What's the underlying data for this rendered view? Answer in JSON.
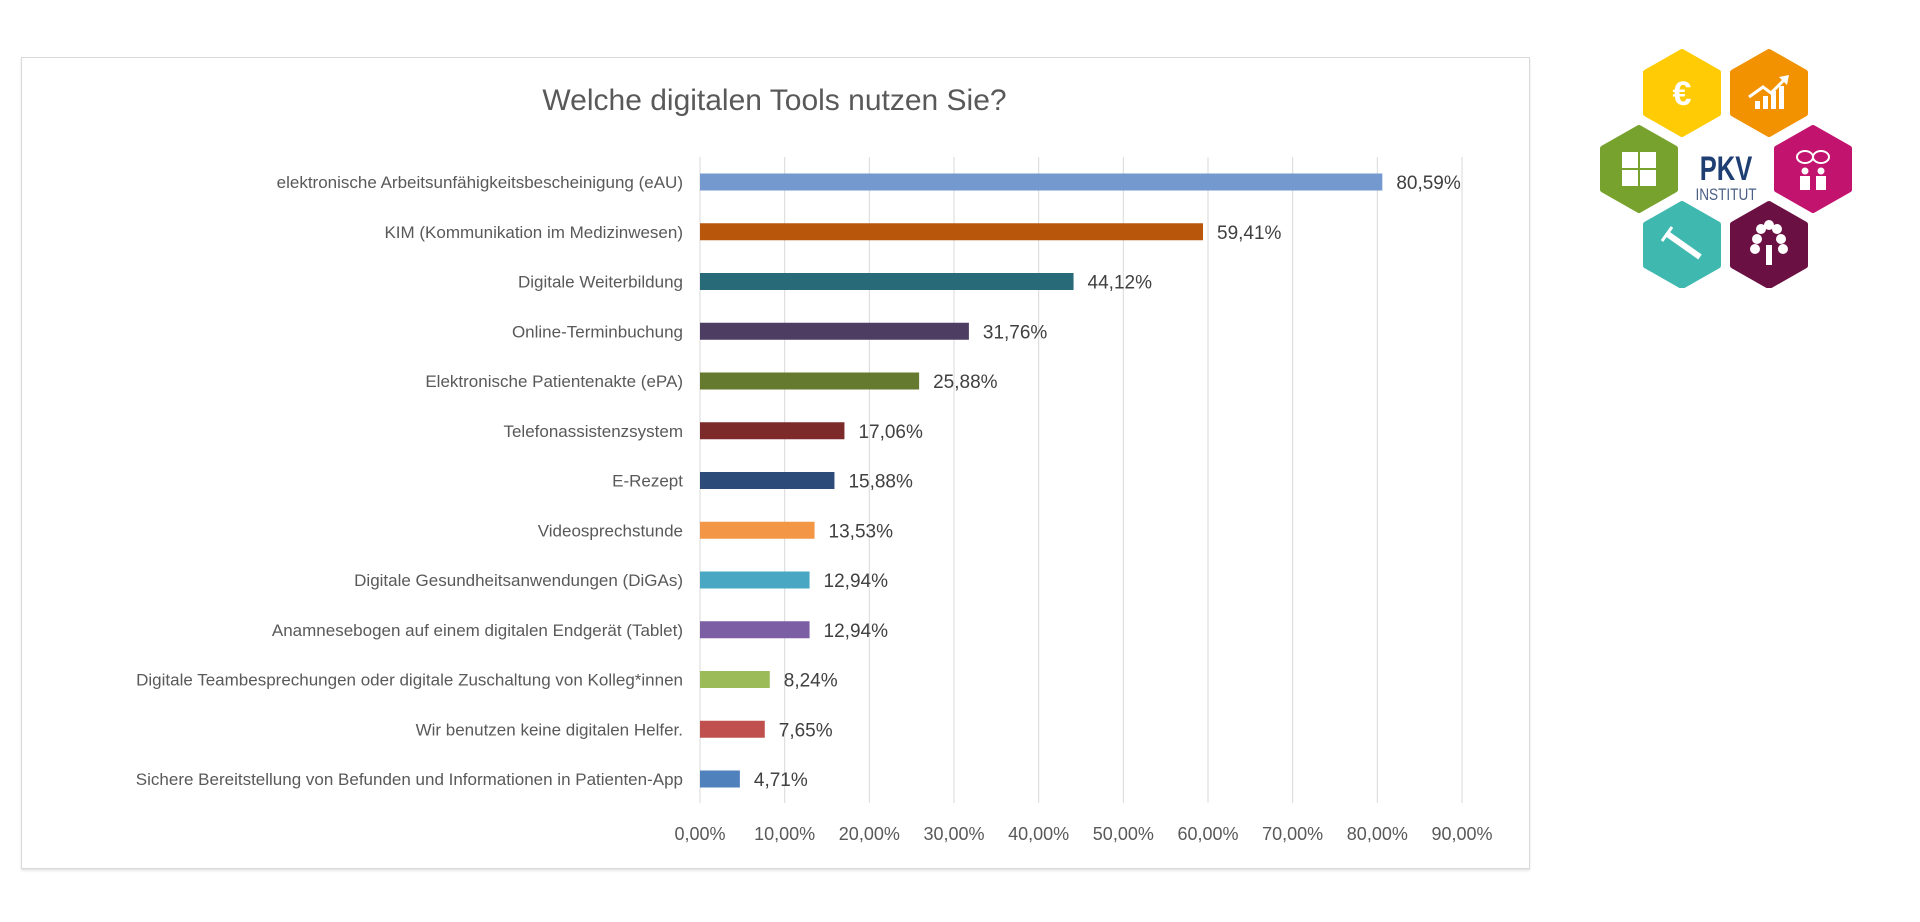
{
  "chart_data": {
    "type": "bar",
    "orientation": "horizontal",
    "title": "Welche digitalen Tools nutzen Sie?",
    "xlabel": "",
    "ylabel": "",
    "xlim": [
      0,
      90
    ],
    "x_ticks": [
      "0,00%",
      "10,00%",
      "20,00%",
      "30,00%",
      "40,00%",
      "50,00%",
      "60,00%",
      "70,00%",
      "80,00%",
      "90,00%"
    ],
    "grid": "vertical",
    "categories": [
      "elektronische Arbeitsunfähigkeitsbescheinigung (eAU)",
      "KIM (Kommunikation im Medizinwesen)",
      "Digitale Weiterbildung",
      "Online-Terminbuchung",
      "Elektronische Patientenakte (ePA)",
      "Telefonassistenzsystem",
      "E-Rezept",
      "Videosprechstunde",
      "Digitale Gesundheitsanwendungen (DiGAs)",
      "Anamnesebogen auf einem digitalen Endgerät (Tablet)",
      "Digitale Teambesprechungen oder digitale Zuschaltung von Kolleg*innen",
      "Wir benutzen keine digitalen Helfer.",
      "Sichere Bereitstellung von Befunden und Informationen in Patienten-App"
    ],
    "values": [
      80.59,
      59.41,
      44.12,
      31.76,
      25.88,
      17.06,
      15.88,
      13.53,
      12.94,
      12.94,
      8.24,
      7.65,
      4.71
    ],
    "value_labels": [
      "80,59%",
      "59,41%",
      "44,12%",
      "31,76%",
      "25,88%",
      "17,06%",
      "15,88%",
      "13,53%",
      "12,94%",
      "12,94%",
      "8,24%",
      "7,65%",
      "4,71%"
    ],
    "colors": [
      "#7399cf",
      "#b8560b",
      "#296a78",
      "#4e3d63",
      "#65792f",
      "#7c2b2a",
      "#2c4b78",
      "#f39646",
      "#4aa7c4",
      "#7b5ea3",
      "#9bbb59",
      "#c0504d",
      "#4f81bd"
    ]
  },
  "logo": {
    "text": "PKV",
    "subtext": "INSTITUT",
    "hexagons": [
      {
        "icon": "euro-icon",
        "color": "#ffcb05"
      },
      {
        "icon": "growth-chart-icon",
        "color": "#f39200"
      },
      {
        "icon": "puzzle-icon",
        "color": "#76a22d"
      },
      {
        "icon": "people-talking-icon",
        "color": "#c2136e"
      },
      {
        "icon": "syringe-icon",
        "color": "#3fb8b0"
      },
      {
        "icon": "tree-icon",
        "color": "#6b1042"
      }
    ],
    "text_color": "#1f3f73"
  }
}
